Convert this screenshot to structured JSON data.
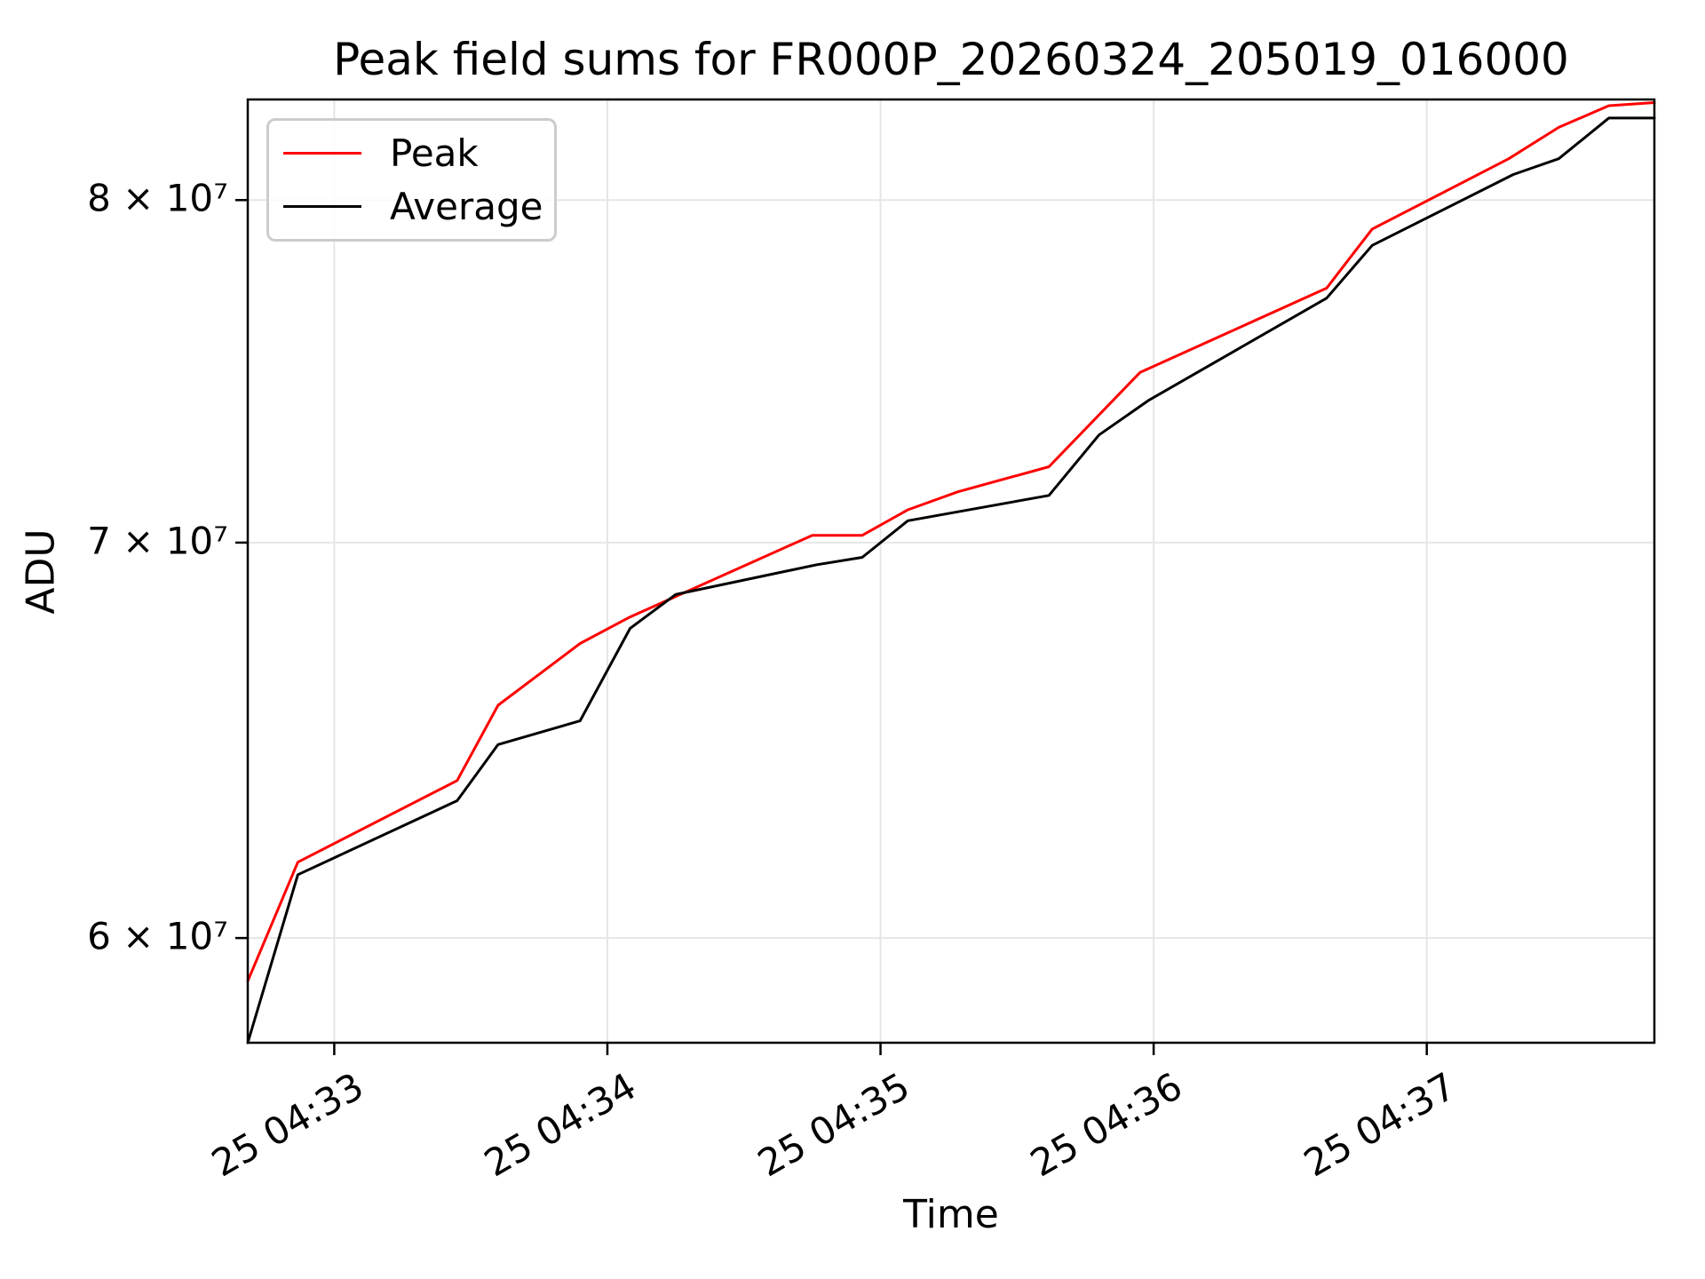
{
  "chart_data": {
    "type": "line",
    "title": "Peak field sums for FR000P_20260324_205019_016000",
    "xlabel": "Time",
    "ylabel": "ADU",
    "yscale": "log",
    "grid": true,
    "legend_position": "upper left",
    "x_unit": "seconds (relative to left edge of plot)",
    "xlim": [
      0,
      309
    ],
    "ylim": [
      57600000,
      83200000
    ],
    "x_ticks": [
      {
        "offset": 19,
        "label": "25 04:33"
      },
      {
        "offset": 79,
        "label": "25 04:34"
      },
      {
        "offset": 139,
        "label": "25 04:35"
      },
      {
        "offset": 199,
        "label": "25 04:36"
      },
      {
        "offset": 259,
        "label": "25 04:37"
      }
    ],
    "y_ticks": [
      {
        "value": 60000000,
        "label": "6 × 10⁷"
      },
      {
        "value": 70000000,
        "label": "7 × 10⁷"
      },
      {
        "value": 80000000,
        "label": "8 × 10⁷"
      }
    ],
    "series": [
      {
        "name": "Peak",
        "color": "#ff0000",
        "x": [
          0,
          11,
          46,
          55,
          73,
          84,
          124,
          135,
          145,
          156,
          176,
          196,
          237,
          247,
          277,
          288,
          299,
          309
        ],
        "y": [
          59000000,
          61800000,
          63800000,
          65700000,
          67300000,
          68000000,
          70200000,
          70200000,
          70900000,
          71400000,
          72100000,
          74800000,
          77300000,
          79100000,
          81300000,
          82300000,
          83000000,
          83100000
        ]
      },
      {
        "name": "Average",
        "color": "#000000",
        "x": [
          0,
          11,
          46,
          55,
          73,
          84,
          94,
          125,
          135,
          145,
          176,
          187,
          198,
          237,
          247,
          278,
          288,
          299,
          309
        ],
        "y": [
          57600000,
          61500000,
          63300000,
          64700000,
          65300000,
          67700000,
          68600000,
          69400000,
          69600000,
          70600000,
          71300000,
          73000000,
          74000000,
          77000000,
          78600000,
          80800000,
          81300000,
          82600000,
          82600000
        ]
      }
    ]
  }
}
